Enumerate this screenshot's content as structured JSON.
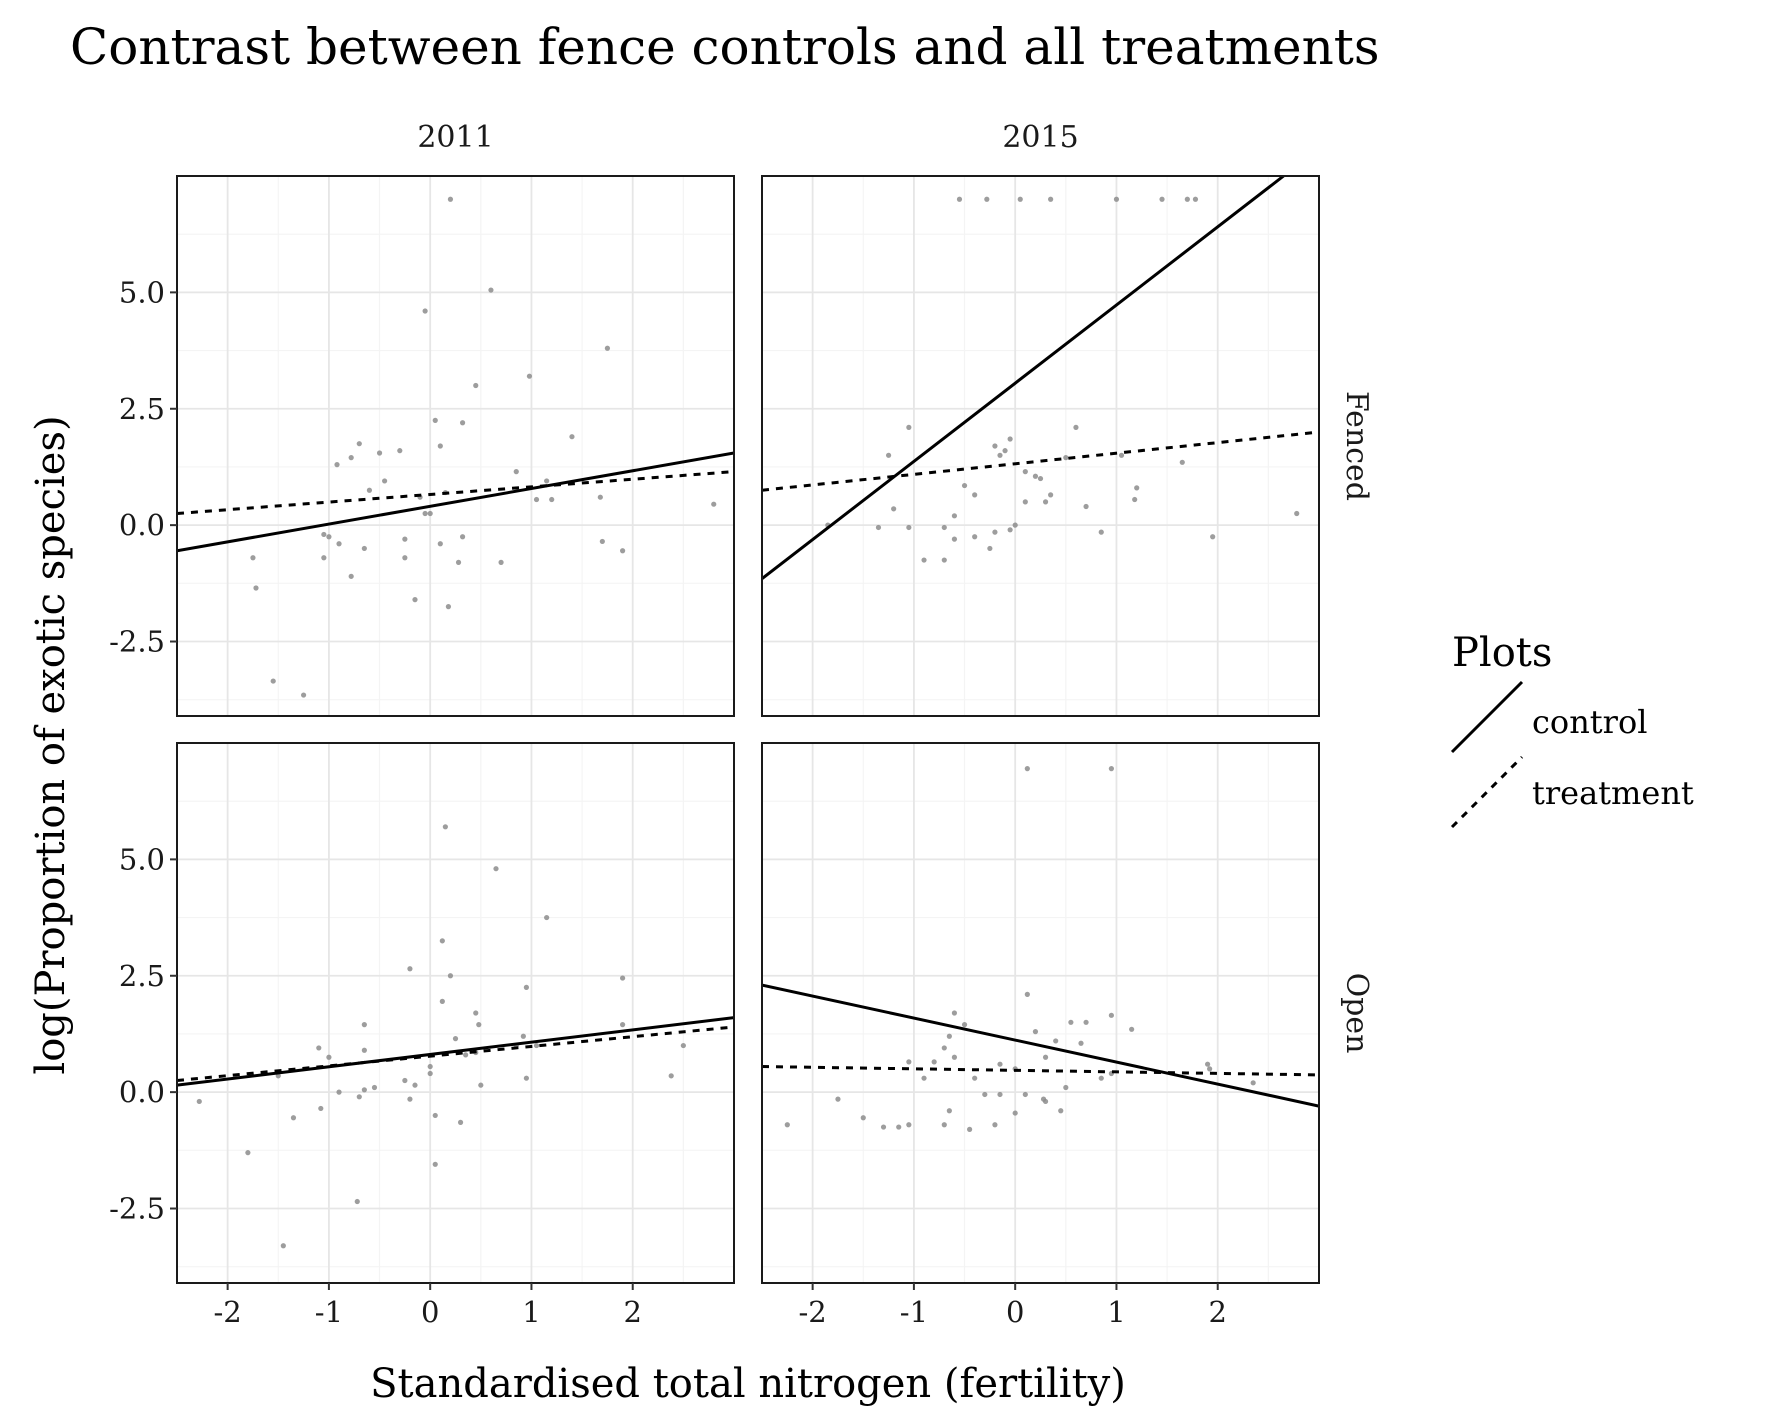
{
  "chart_data": {
    "type": "scatter",
    "title": "Contrast between fence controls and all treatments",
    "xlabel": "Standardised total nitrogen (fertility)",
    "ylabel": "log(Proportion of exotic species)",
    "xlim": [
      -2.5,
      3.0
    ],
    "ylim": [
      -4.1,
      7.5
    ],
    "x_ticks": [
      -2,
      -1,
      0,
      1,
      2
    ],
    "x_tick_labels": [
      "-2",
      "-1",
      "0",
      "1",
      "2"
    ],
    "y_ticks": [
      -2.5,
      0.0,
      2.5,
      5.0
    ],
    "y_tick_labels": [
      "-2.5",
      "0.0",
      "2.5",
      "5.0"
    ],
    "col_labels": [
      "2011",
      "2015"
    ],
    "row_labels": [
      "Fenced",
      "Open"
    ],
    "grid": true,
    "legend": {
      "title": "Plots",
      "position": "right",
      "entries": [
        {
          "label": "control",
          "linetype": "solid"
        },
        {
          "label": "treatment",
          "linetype": "dashed"
        }
      ]
    },
    "colors": {
      "line": "#000000",
      "point": "#8c8c8c",
      "grid_major": "#e6e6e6",
      "grid_minor": "#f4f4f4",
      "border": "#1a1a1a"
    },
    "panels": [
      {
        "col": "2011",
        "row": "Fenced",
        "lines": [
          {
            "name": "control",
            "x": [
              -2.5,
              3.0
            ],
            "y": [
              -0.55,
              1.55
            ]
          },
          {
            "name": "treatment",
            "x": [
              -2.5,
              3.0
            ],
            "y": [
              0.25,
              1.15
            ]
          }
        ],
        "points": [
          [
            0.2,
            7.0
          ],
          [
            0.6,
            5.05
          ],
          [
            -0.05,
            4.6
          ],
          [
            1.75,
            3.8
          ],
          [
            0.45,
            3.0
          ],
          [
            0.98,
            3.2
          ],
          [
            0.05,
            2.25
          ],
          [
            0.32,
            2.2
          ],
          [
            1.4,
            1.9
          ],
          [
            -0.7,
            1.75
          ],
          [
            0.1,
            1.7
          ],
          [
            -0.5,
            1.55
          ],
          [
            -0.3,
            1.6
          ],
          [
            -0.78,
            1.45
          ],
          [
            -0.92,
            1.3
          ],
          [
            -0.45,
            0.95
          ],
          [
            0.85,
            1.15
          ],
          [
            1.15,
            0.95
          ],
          [
            1.05,
            0.55
          ],
          [
            1.2,
            0.55
          ],
          [
            1.68,
            0.6
          ],
          [
            2.8,
            0.45
          ],
          [
            -0.6,
            0.75
          ],
          [
            -0.1,
            0.6
          ],
          [
            0.15,
            0.7
          ],
          [
            0.0,
            0.25
          ],
          [
            -0.05,
            0.25
          ],
          [
            -1.05,
            -0.2
          ],
          [
            -0.9,
            -0.4
          ],
          [
            -1.0,
            -0.25
          ],
          [
            -0.65,
            -0.5
          ],
          [
            0.1,
            -0.4
          ],
          [
            0.32,
            -0.25
          ],
          [
            -0.25,
            -0.3
          ],
          [
            -1.75,
            -0.7
          ],
          [
            -1.05,
            -0.7
          ],
          [
            -0.25,
            -0.7
          ],
          [
            0.28,
            -0.8
          ],
          [
            0.7,
            -0.8
          ],
          [
            -0.78,
            -1.1
          ],
          [
            -1.72,
            -1.35
          ],
          [
            -0.15,
            -1.6
          ],
          [
            0.18,
            -1.75
          ],
          [
            -1.55,
            -3.35
          ],
          [
            -1.25,
            -3.65
          ],
          [
            1.7,
            -0.35
          ],
          [
            1.9,
            -0.55
          ]
        ]
      },
      {
        "col": "2015",
        "row": "Fenced",
        "lines": [
          {
            "name": "control",
            "x": [
              -2.5,
              2.65
            ],
            "y": [
              -1.15,
              7.5
            ]
          },
          {
            "name": "treatment",
            "x": [
              -2.5,
              3.0
            ],
            "y": [
              0.75,
              2.0
            ]
          }
        ],
        "points": [
          [
            -0.55,
            7.0
          ],
          [
            -0.28,
            7.0
          ],
          [
            0.05,
            7.0
          ],
          [
            0.35,
            7.0
          ],
          [
            1.0,
            7.0
          ],
          [
            1.45,
            7.0
          ],
          [
            1.7,
            7.0
          ],
          [
            1.78,
            7.0
          ],
          [
            -1.05,
            2.1
          ],
          [
            0.6,
            2.1
          ],
          [
            -1.25,
            1.5
          ],
          [
            -0.2,
            1.7
          ],
          [
            -0.05,
            1.85
          ],
          [
            -0.5,
            0.85
          ],
          [
            -0.4,
            0.65
          ],
          [
            0.1,
            1.15
          ],
          [
            0.2,
            1.05
          ],
          [
            0.25,
            1.0
          ],
          [
            0.5,
            1.45
          ],
          [
            1.05,
            1.5
          ],
          [
            -0.15,
            1.5
          ],
          [
            -0.1,
            1.6
          ],
          [
            0.35,
            0.65
          ],
          [
            0.1,
            0.5
          ],
          [
            0.3,
            0.5
          ],
          [
            -0.6,
            0.2
          ],
          [
            0.7,
            0.4
          ],
          [
            1.2,
            0.8
          ],
          [
            1.18,
            0.55
          ],
          [
            1.65,
            1.35
          ],
          [
            2.78,
            0.25
          ],
          [
            -1.2,
            0.35
          ],
          [
            -1.05,
            -0.05
          ],
          [
            -0.7,
            -0.05
          ],
          [
            -0.4,
            -0.25
          ],
          [
            -0.6,
            -0.3
          ],
          [
            -0.2,
            -0.15
          ],
          [
            -0.05,
            -0.1
          ],
          [
            0.0,
            0.0
          ],
          [
            -1.35,
            -0.05
          ],
          [
            -1.85,
            0.0
          ],
          [
            -0.25,
            -0.5
          ],
          [
            -0.9,
            -0.75
          ],
          [
            -0.7,
            -0.75
          ],
          [
            0.85,
            -0.15
          ],
          [
            1.95,
            -0.25
          ]
        ]
      },
      {
        "col": "2011",
        "row": "Open",
        "lines": [
          {
            "name": "control",
            "x": [
              -2.5,
              3.0
            ],
            "y": [
              0.15,
              1.6
            ]
          },
          {
            "name": "treatment",
            "x": [
              -2.5,
              3.0
            ],
            "y": [
              0.25,
              1.4
            ]
          }
        ],
        "points": [
          [
            0.15,
            5.7
          ],
          [
            0.65,
            4.8
          ],
          [
            1.15,
            3.75
          ],
          [
            0.12,
            3.25
          ],
          [
            -0.2,
            2.65
          ],
          [
            0.2,
            2.5
          ],
          [
            1.9,
            2.45
          ],
          [
            0.95,
            2.25
          ],
          [
            0.12,
            1.95
          ],
          [
            0.45,
            1.7
          ],
          [
            0.48,
            1.45
          ],
          [
            1.9,
            1.45
          ],
          [
            -0.65,
            1.45
          ],
          [
            0.25,
            1.15
          ],
          [
            0.92,
            1.2
          ],
          [
            1.05,
            1.0
          ],
          [
            0.85,
            1.0
          ],
          [
            2.5,
            1.0
          ],
          [
            -1.1,
            0.95
          ],
          [
            -0.65,
            0.9
          ],
          [
            -1.0,
            0.75
          ],
          [
            0.35,
            0.8
          ],
          [
            0.45,
            0.85
          ],
          [
            0.0,
            0.55
          ],
          [
            0.0,
            0.4
          ],
          [
            0.95,
            0.3
          ],
          [
            2.38,
            0.35
          ],
          [
            -1.5,
            0.35
          ],
          [
            -0.25,
            0.25
          ],
          [
            -0.15,
            0.15
          ],
          [
            -0.65,
            0.05
          ],
          [
            -0.55,
            0.1
          ],
          [
            -0.9,
            0.0
          ],
          [
            -0.7,
            -0.1
          ],
          [
            -0.2,
            -0.15
          ],
          [
            -2.28,
            -0.2
          ],
          [
            -1.08,
            -0.35
          ],
          [
            0.05,
            -0.5
          ],
          [
            -1.35,
            -0.55
          ],
          [
            0.3,
            -0.65
          ],
          [
            -1.8,
            -1.3
          ],
          [
            0.05,
            -1.55
          ],
          [
            -0.72,
            -2.35
          ],
          [
            -1.45,
            -3.3
          ],
          [
            0.5,
            0.15
          ]
        ]
      },
      {
        "col": "2015",
        "row": "Open",
        "lines": [
          {
            "name": "control",
            "x": [
              -2.5,
              3.0
            ],
            "y": [
              2.3,
              -0.3
            ]
          },
          {
            "name": "treatment",
            "x": [
              -2.5,
              3.0
            ],
            "y": [
              0.55,
              0.37
            ]
          }
        ],
        "points": [
          [
            0.12,
            6.95
          ],
          [
            0.95,
            6.95
          ],
          [
            0.12,
            2.1
          ],
          [
            -0.6,
            1.7
          ],
          [
            0.95,
            1.65
          ],
          [
            0.55,
            1.5
          ],
          [
            0.7,
            1.5
          ],
          [
            1.15,
            1.35
          ],
          [
            0.2,
            1.3
          ],
          [
            -0.65,
            1.2
          ],
          [
            -0.5,
            1.45
          ],
          [
            0.4,
            1.1
          ],
          [
            0.3,
            0.75
          ],
          [
            0.65,
            1.05
          ],
          [
            -0.7,
            0.95
          ],
          [
            -0.6,
            0.75
          ],
          [
            -0.8,
            0.65
          ],
          [
            -1.05,
            0.65
          ],
          [
            -0.15,
            0.6
          ],
          [
            0.0,
            0.5
          ],
          [
            1.9,
            0.6
          ],
          [
            1.92,
            0.5
          ],
          [
            -0.9,
            0.3
          ],
          [
            0.85,
            0.3
          ],
          [
            0.95,
            0.4
          ],
          [
            -0.4,
            0.3
          ],
          [
            2.35,
            0.2
          ],
          [
            0.5,
            0.1
          ],
          [
            0.1,
            -0.05
          ],
          [
            -0.3,
            -0.05
          ],
          [
            -0.15,
            -0.05
          ],
          [
            0.3,
            -0.2
          ],
          [
            0.28,
            -0.15
          ],
          [
            -1.75,
            -0.15
          ],
          [
            0.45,
            -0.4
          ],
          [
            0.0,
            -0.45
          ],
          [
            -1.5,
            -0.55
          ],
          [
            -0.65,
            -0.4
          ],
          [
            -2.25,
            -0.7
          ],
          [
            -1.3,
            -0.75
          ],
          [
            -1.15,
            -0.75
          ],
          [
            -1.05,
            -0.7
          ],
          [
            -0.7,
            -0.7
          ],
          [
            -0.45,
            -0.8
          ],
          [
            -0.2,
            -0.7
          ]
        ]
      }
    ]
  }
}
